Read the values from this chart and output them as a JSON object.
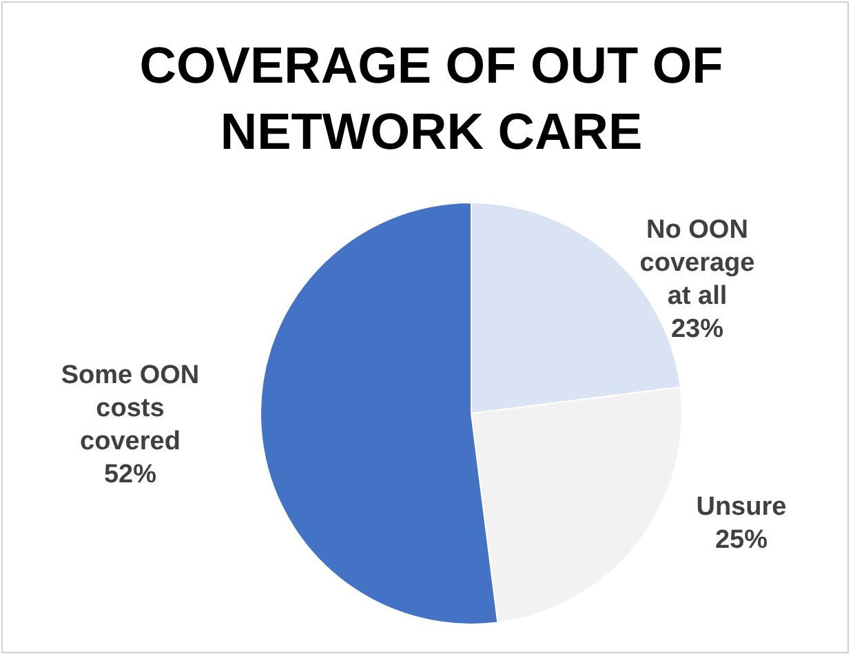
{
  "chart_data": {
    "type": "pie",
    "title": "COVERAGE OF OUT OF NETWORK CARE",
    "categories": [
      "No OON coverage at all",
      "Unsure",
      "Some OON costs covered"
    ],
    "values": [
      23,
      25,
      52
    ],
    "colors": [
      "#dae3f3",
      "#f2f2f2",
      "#4472c4"
    ],
    "value_labels": [
      "23%",
      "25%",
      "52%"
    ]
  }
}
